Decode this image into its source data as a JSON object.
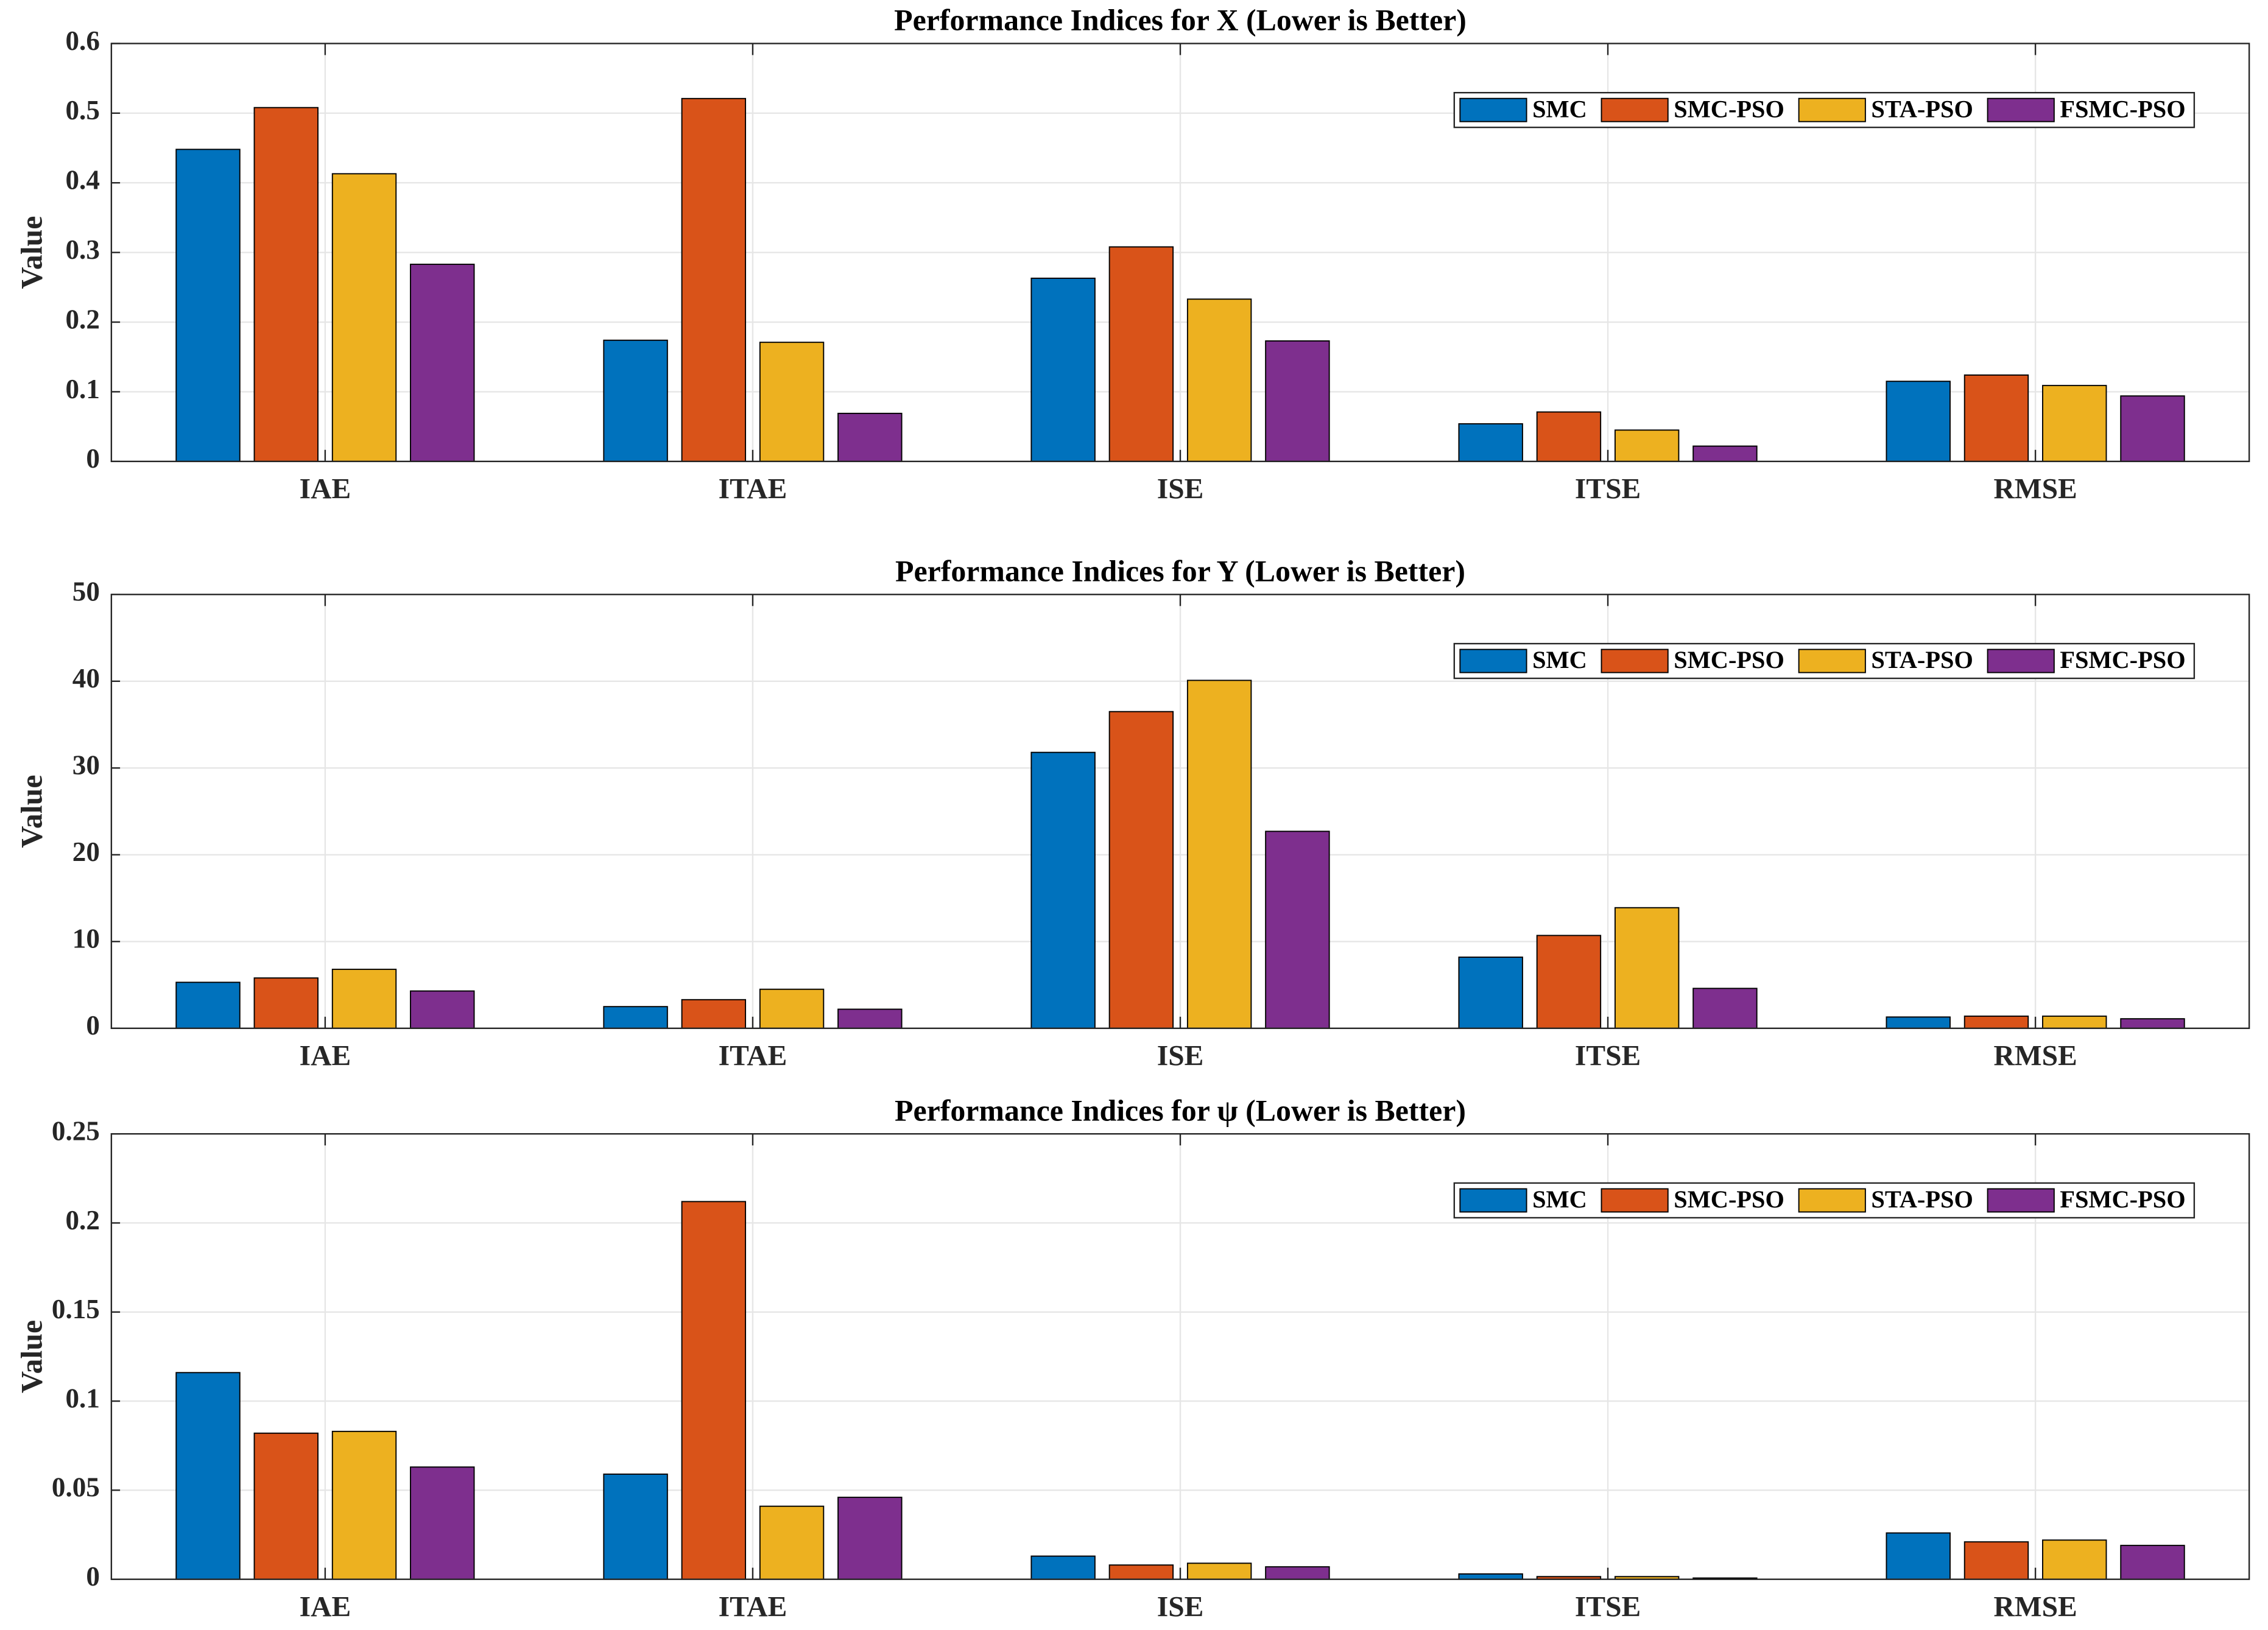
{
  "chart_data": [
    {
      "type": "bar",
      "title": "Performance Indices for X (Lower is Better)",
      "y_label": "Value",
      "categories": [
        "IAE",
        "ITAE",
        "ISE",
        "ITSE",
        "RMSE"
      ],
      "series": [
        {
          "name": "SMC",
          "color": "#0072BD",
          "values": [
            0.448,
            0.174,
            0.263,
            0.054,
            0.115
          ]
        },
        {
          "name": "SMC-PSO",
          "color": "#D95319",
          "values": [
            0.508,
            0.521,
            0.308,
            0.071,
            0.124
          ]
        },
        {
          "name": "STA-PSO",
          "color": "#EDB120",
          "values": [
            0.413,
            0.171,
            0.233,
            0.045,
            0.109
          ]
        },
        {
          "name": "FSMC-PSO",
          "color": "#7E2F8E",
          "values": [
            0.283,
            0.069,
            0.173,
            0.022,
            0.094
          ]
        }
      ],
      "ylim": [
        0,
        0.6
      ],
      "yticks": [
        0,
        0.1,
        0.2,
        0.3,
        0.4,
        0.5,
        0.6
      ],
      "grid": true,
      "legend": "northeast"
    },
    {
      "type": "bar",
      "title": "Performance Indices for Y (Lower is Better)",
      "y_label": "Value",
      "categories": [
        "IAE",
        "ITAE",
        "ISE",
        "ITSE",
        "RMSE"
      ],
      "series": [
        {
          "name": "SMC",
          "color": "#0072BD",
          "values": [
            5.3,
            2.5,
            31.8,
            8.2,
            1.3
          ]
        },
        {
          "name": "SMC-PSO",
          "color": "#D95319",
          "values": [
            5.8,
            3.3,
            36.5,
            10.7,
            1.4
          ]
        },
        {
          "name": "STA-PSO",
          "color": "#EDB120",
          "values": [
            6.8,
            4.5,
            40.1,
            13.9,
            1.4
          ]
        },
        {
          "name": "FSMC-PSO",
          "color": "#7E2F8E",
          "values": [
            4.3,
            2.2,
            22.7,
            4.6,
            1.1
          ]
        }
      ],
      "ylim": [
        0,
        50
      ],
      "yticks": [
        0,
        10,
        20,
        30,
        40,
        50
      ],
      "grid": true,
      "legend": "northeast"
    },
    {
      "type": "bar",
      "title": "Performance Indices for ψ (Lower is Better)",
      "y_label": "Value",
      "categories": [
        "IAE",
        "ITAE",
        "ISE",
        "ITSE",
        "RMSE"
      ],
      "series": [
        {
          "name": "SMC",
          "color": "#0072BD",
          "values": [
            0.116,
            0.059,
            0.013,
            0.003,
            0.026
          ]
        },
        {
          "name": "SMC-PSO",
          "color": "#D95319",
          "values": [
            0.082,
            0.212,
            0.008,
            0.0015,
            0.021
          ]
        },
        {
          "name": "STA-PSO",
          "color": "#EDB120",
          "values": [
            0.083,
            0.041,
            0.009,
            0.0015,
            0.022
          ]
        },
        {
          "name": "FSMC-PSO",
          "color": "#7E2F8E",
          "values": [
            0.063,
            0.046,
            0.007,
            0.0007,
            0.019
          ]
        }
      ],
      "ylim": [
        0,
        0.25
      ],
      "yticks": [
        0,
        0.05,
        0.1,
        0.15,
        0.2,
        0.25
      ],
      "grid": true,
      "legend": "northeast"
    }
  ]
}
